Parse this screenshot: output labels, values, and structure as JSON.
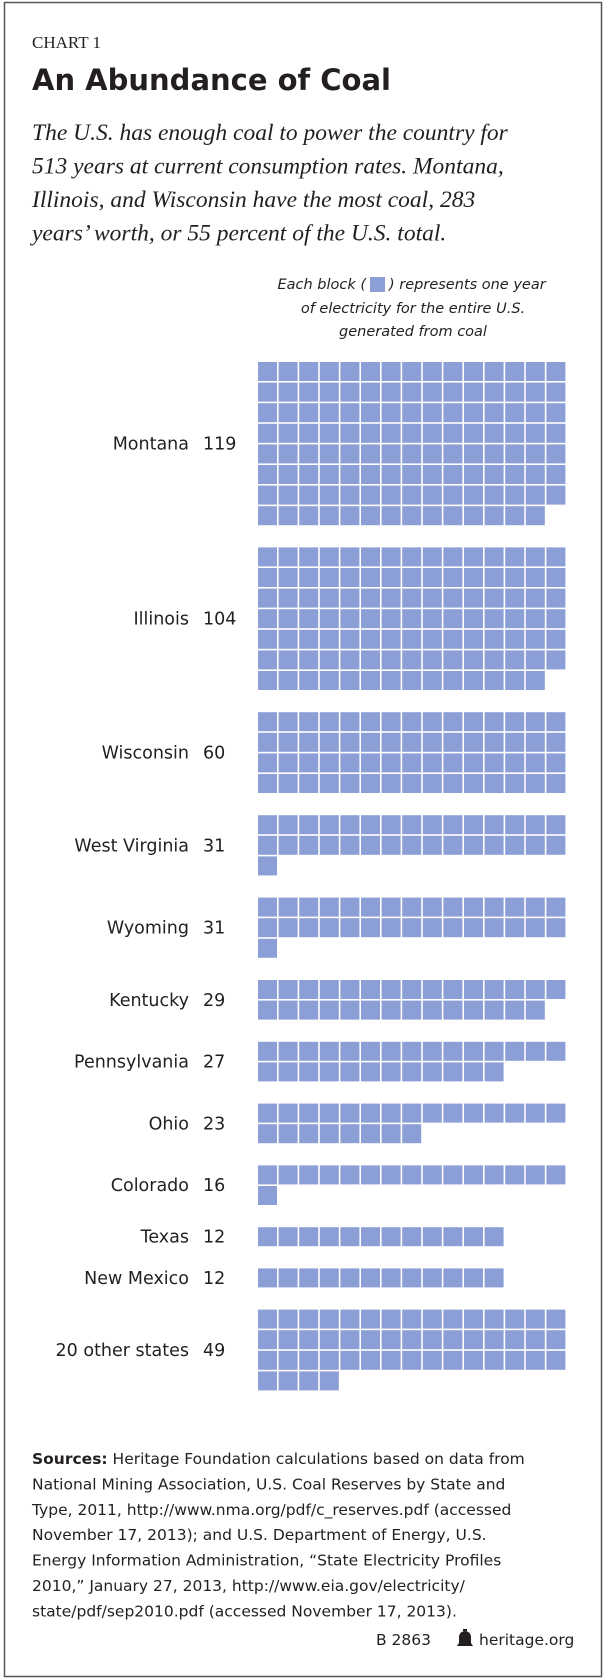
{
  "chart_data": {
    "type": "waffle",
    "kicker": "CHART 1",
    "title": "An Abundance of Coal",
    "subtitle_lines": [
      "The U.S. has enough coal to power the country for",
      "513 years at current consumption rates. Montana,",
      "Illinois, and Wisconsin have the most coal, 283",
      "years’ worth, or 55 percent of the U.S. total."
    ],
    "note_before": "Each block (",
    "note_after": ") represents one year",
    "note_lines": [
      "of electricity for the entire U.S.",
      "generated from coal"
    ],
    "categories": [
      "Montana",
      "Illinois",
      "Wisconsin",
      "West Virginia",
      "Wyoming",
      "Kentucky",
      "Pennsylvania",
      "Ohio",
      "Colorado",
      "Texas",
      "New Mexico",
      "20 other states"
    ],
    "values": [
      119,
      104,
      60,
      31,
      31,
      29,
      27,
      23,
      16,
      12,
      12,
      49
    ],
    "color": "#8c9ed6",
    "sources_label": "Sources:",
    "sources_lines": [
      " Heritage Foundation calculations based on data from",
      "National Mining Association, U.S. Coal Reserves by State and",
      "Type, 2011, http://www.nma.org/pdf/c_reserves.pdf (accessed",
      "November 17, 2013); and U.S. Department of Energy, U.S.",
      "Energy Information Administration, “State Electricity Profiles",
      "2010,” January 27, 2013, http://www.eia.gov/electricity/",
      "state/pdf/sep2010.pdf (accessed November 17, 2013)."
    ],
    "report_id": "B 2863",
    "site": "heritage.org"
  }
}
